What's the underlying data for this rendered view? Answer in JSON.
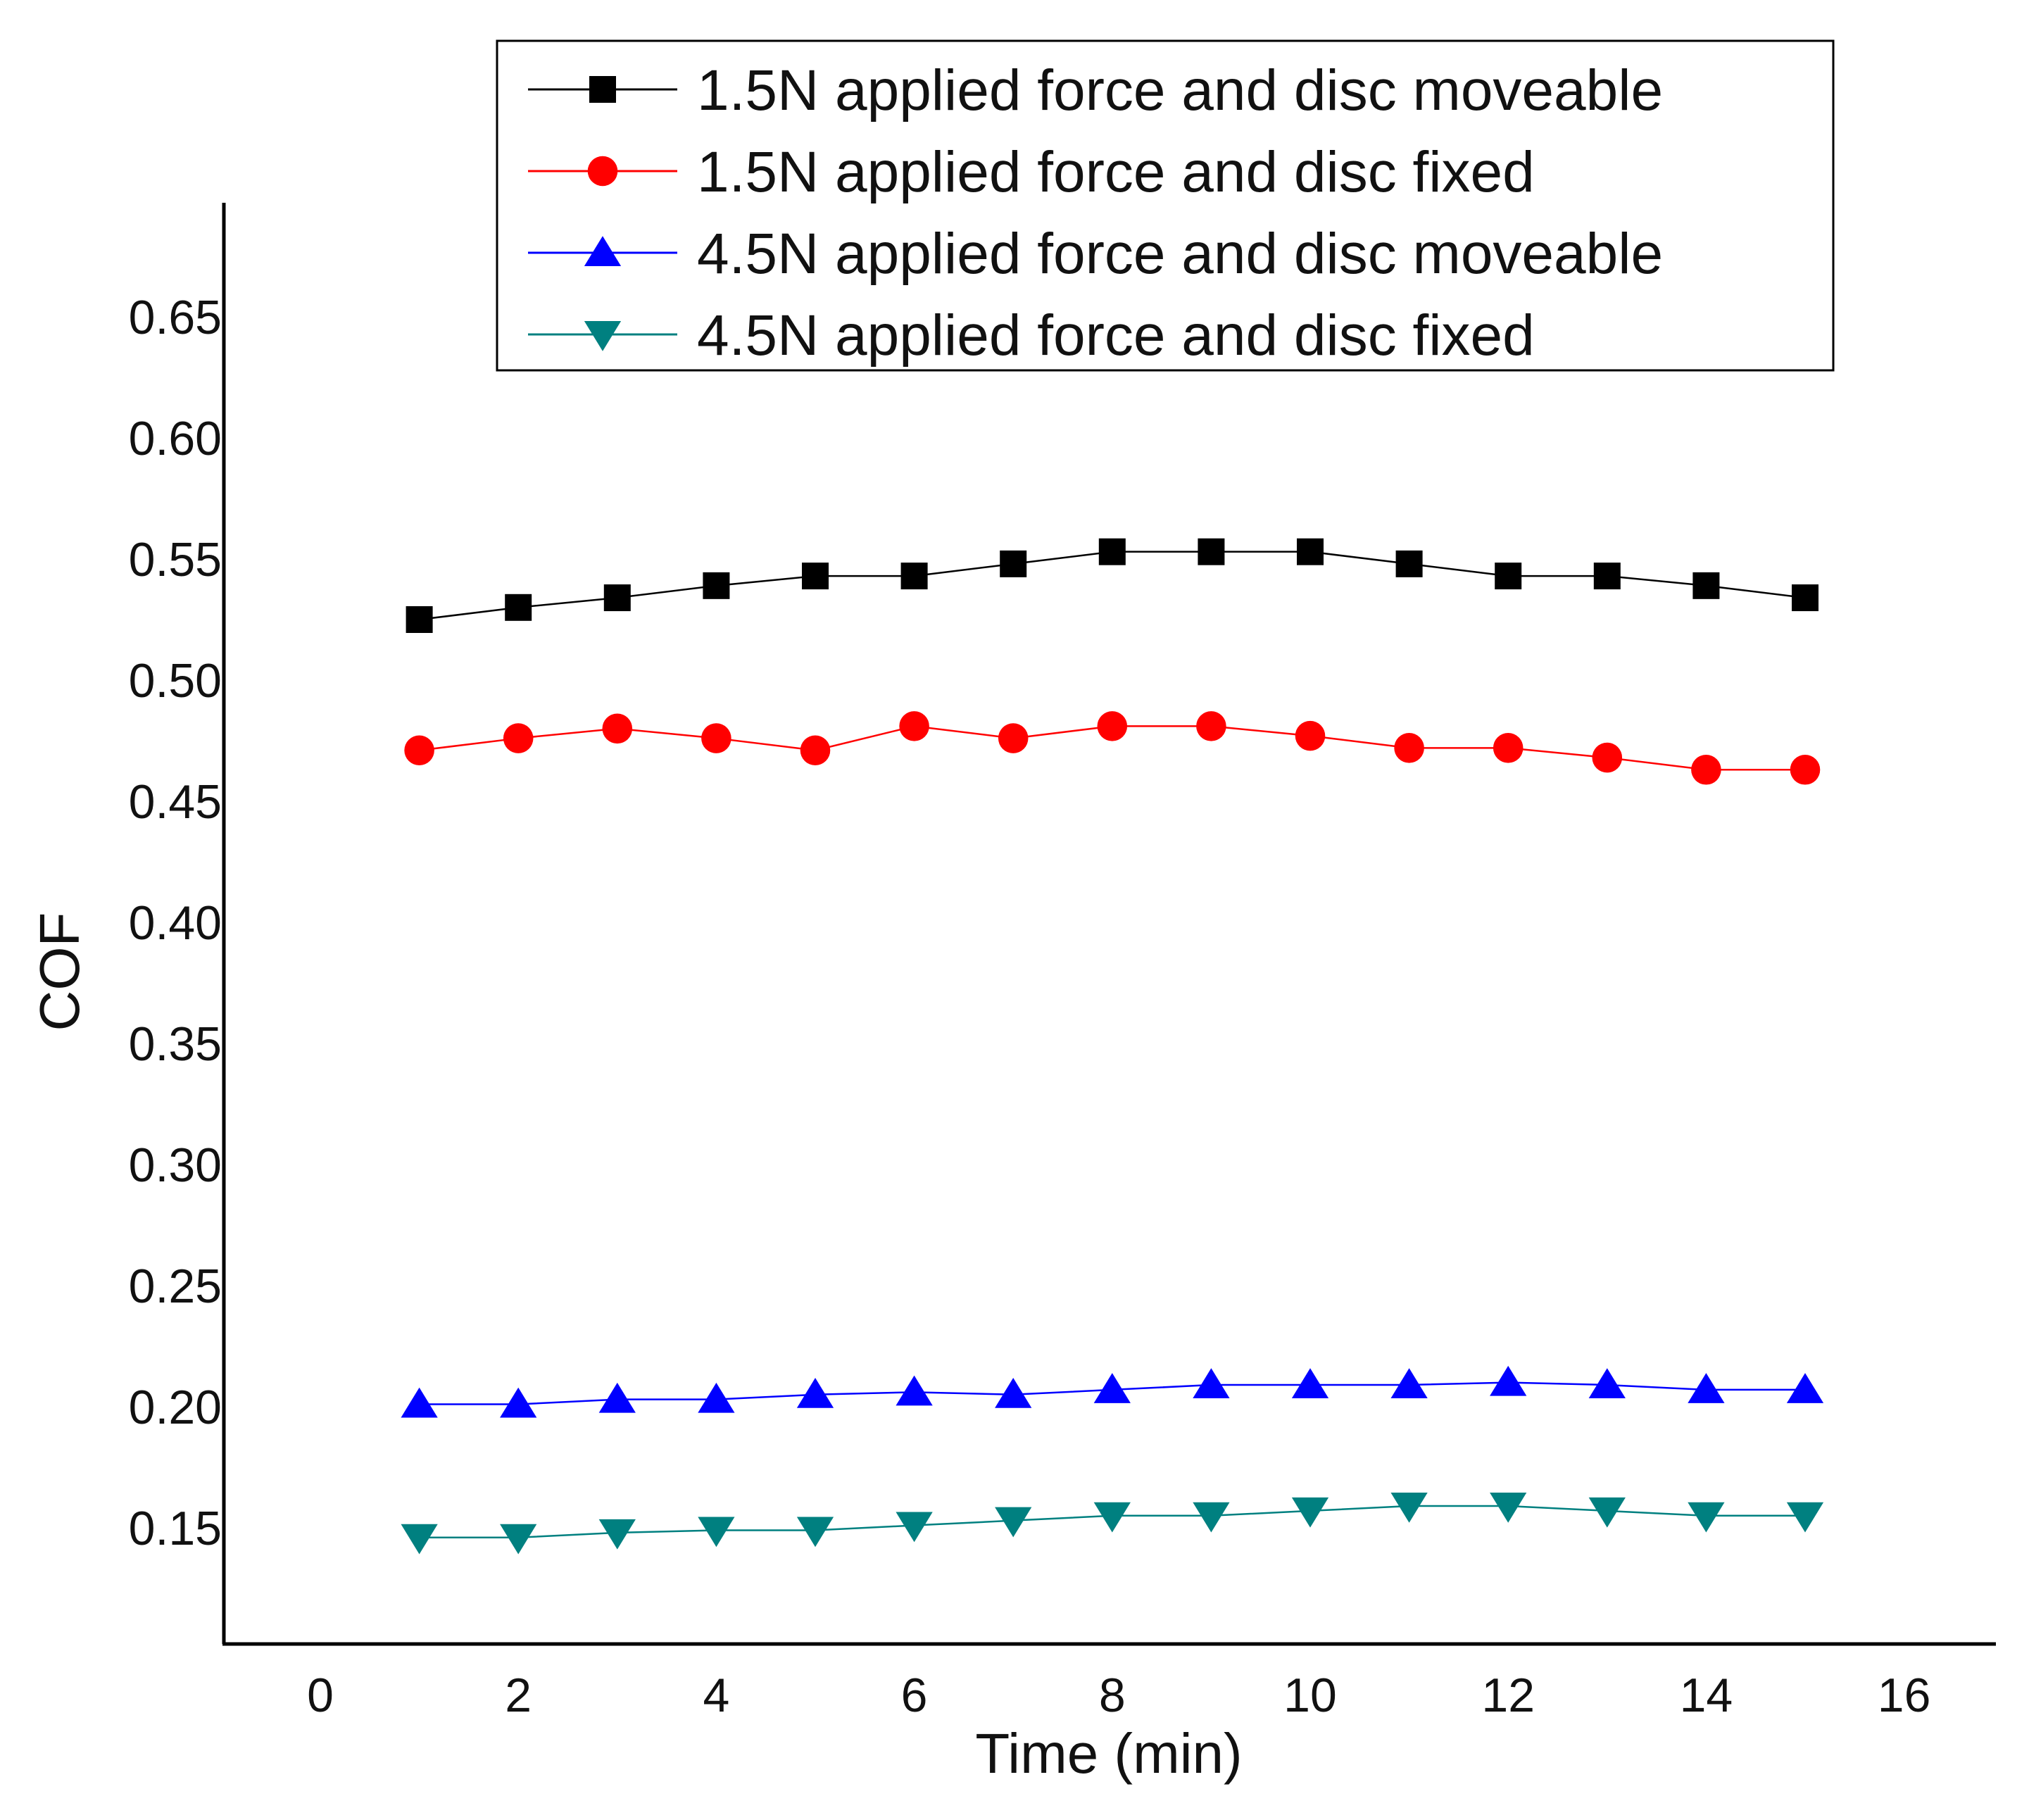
{
  "chart_data": {
    "type": "line",
    "title": "",
    "xlabel": "Time (min)",
    "ylabel": "COF",
    "xlim": [
      -1,
      17
    ],
    "ylim": [
      0.1,
      0.695
    ],
    "xticks": [
      0,
      2,
      4,
      6,
      8,
      10,
      12,
      14,
      16
    ],
    "yticks": [
      0.15,
      0.2,
      0.25,
      0.3,
      0.35,
      0.4,
      0.45,
      0.5,
      0.55,
      0.6,
      0.65
    ],
    "xtick_labels": [
      "0",
      "2",
      "4",
      "6",
      "8",
      "10",
      "12",
      "14",
      "16"
    ],
    "ytick_labels": [
      "0.15",
      "0.20",
      "0.25",
      "0.30",
      "0.35",
      "0.40",
      "0.45",
      "0.50",
      "0.55",
      "0.60",
      "0.65"
    ],
    "grid": false,
    "legend_position": "top-right",
    "x": [
      1,
      2,
      3,
      4,
      5,
      6,
      7,
      8,
      9,
      10,
      11,
      12,
      13,
      14,
      15
    ],
    "series": [
      {
        "name": "1.5N applied force and disc moveable",
        "color": "#000000",
        "marker": "square",
        "values": [
          0.525,
          0.53,
          0.534,
          0.539,
          0.543,
          0.543,
          0.548,
          0.553,
          0.553,
          0.553,
          0.548,
          0.543,
          0.543,
          0.539,
          0.534
        ]
      },
      {
        "name": "1.5N applied force and disc fixed",
        "color": "#ff0000",
        "marker": "circle",
        "values": [
          0.471,
          0.476,
          0.48,
          0.476,
          0.471,
          0.481,
          0.476,
          0.481,
          0.481,
          0.477,
          0.472,
          0.472,
          0.468,
          0.463,
          0.463
        ]
      },
      {
        "name": "4.5N applied force and disc moveable",
        "color": "#0000ff",
        "marker": "triangle-up",
        "values": [
          0.201,
          0.201,
          0.203,
          0.203,
          0.205,
          0.206,
          0.205,
          0.207,
          0.209,
          0.209,
          0.209,
          0.21,
          0.209,
          0.207,
          0.207
        ]
      },
      {
        "name": "4.5N applied force and disc fixed",
        "color": "#008080",
        "marker": "triangle-down",
        "values": [
          0.146,
          0.146,
          0.148,
          0.149,
          0.149,
          0.151,
          0.153,
          0.155,
          0.155,
          0.157,
          0.159,
          0.159,
          0.157,
          0.155,
          0.155
        ]
      }
    ]
  }
}
